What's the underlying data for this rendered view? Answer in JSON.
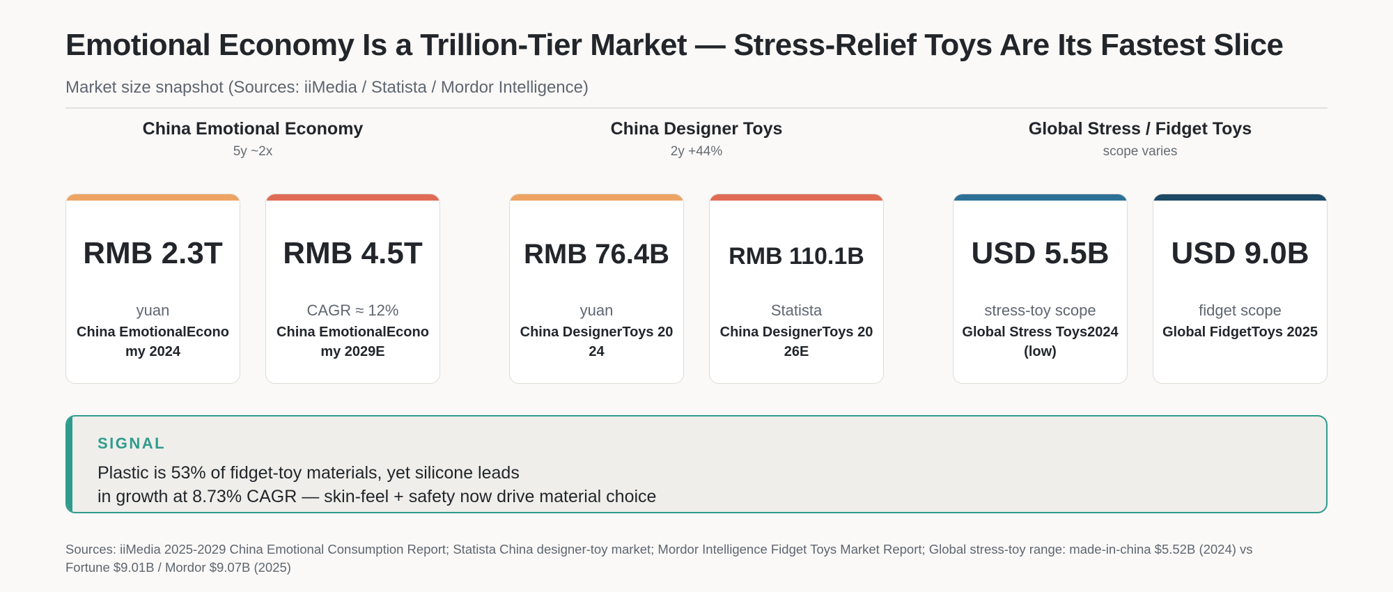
{
  "header": {
    "title": "Emotional Economy Is a Trillion-Tier Market — Stress-Relief Toys Are Its Fastest Slice",
    "subtitle": "Market size snapshot (Sources: iiMedia / Statista / Mordor Intelligence)"
  },
  "groups": [
    {
      "title": "China Emotional Economy",
      "note": "5y ~2x",
      "cards": [
        {
          "value": "RMB 2.3T",
          "unit": "yuan",
          "label": "China EmotionalEconomy 2024",
          "bar_color": "#eda463"
        },
        {
          "value": "RMB 4.5T",
          "unit": "CAGR ≈ 12%",
          "label": "China EmotionalEconomy 2029E",
          "bar_color": "#e06c56"
        }
      ]
    },
    {
      "title": "China Designer Toys",
      "note": "2y +44%",
      "cards": [
        {
          "value": "RMB 76.4B",
          "unit": "yuan",
          "label": "China DesignerToys 2024",
          "bar_color": "#eda463"
        },
        {
          "value": "RMB 110.1B",
          "unit": "Statista",
          "label": "China DesignerToys 2026E",
          "bar_color": "#e06c56"
        }
      ]
    },
    {
      "title": "Global Stress / Fidget Toys",
      "note": "scope varies",
      "cards": [
        {
          "value": "USD 5.5B",
          "unit": "stress-toy scope",
          "label": "Global Stress Toys2024 (low)",
          "bar_color": "#2e7196"
        },
        {
          "value": "USD 9.0B",
          "unit": "fidget scope",
          "label": "Global FidgetToys 2025",
          "bar_color": "#1d4a66"
        }
      ]
    }
  ],
  "signal": {
    "heading": "SIGNAL",
    "line1": "Plastic is 53% of fidget-toy materials, yet silicone leads",
    "line2": "in growth at 8.73% CAGR — skin-feel + safety now drive material choice",
    "accent_color": "#2f9b8d"
  },
  "footer": {
    "sources": "Sources: iiMedia 2025-2029 China Emotional Consumption Report; Statista China designer-toy market; Mordor Intelligence Fidget Toys Market Report; Global stress-toy range: made-in-china $5.52B (2024) vs Fortune $9.01B / Mordor $9.07B (2025)"
  }
}
